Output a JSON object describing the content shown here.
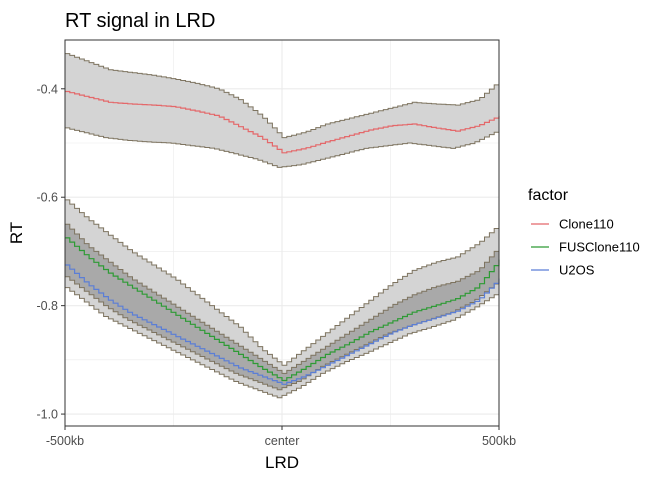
{
  "chart_data": {
    "type": "line",
    "title": "RT signal in LRD",
    "xlabel": "LRD",
    "ylabel": "RT",
    "x_ticks": [
      "-500kb",
      "center",
      "500kb"
    ],
    "x_tick_values": [
      -500,
      0,
      500
    ],
    "xlim": [
      -500,
      500
    ],
    "y_ticks": [
      -1.0,
      -0.8,
      -0.6,
      -0.4
    ],
    "y_tick_labels": [
      "-1.0",
      "-0.8",
      "-0.6",
      "-0.4"
    ],
    "ylim": [
      -1.022,
      -0.31
    ],
    "grid": true,
    "legend": {
      "title": "factor",
      "position": "right"
    },
    "x": [
      -500,
      -450,
      -400,
      -350,
      -300,
      -250,
      -200,
      -150,
      -100,
      -50,
      0,
      50,
      100,
      150,
      200,
      250,
      300,
      350,
      400,
      450,
      500
    ],
    "series": [
      {
        "name": "Clone110",
        "color": "#e4686a",
        "values": [
          -0.405,
          -0.415,
          -0.425,
          -0.428,
          -0.43,
          -0.433,
          -0.441,
          -0.45,
          -0.47,
          -0.49,
          -0.518,
          -0.51,
          -0.498,
          -0.487,
          -0.476,
          -0.468,
          -0.465,
          -0.472,
          -0.478,
          -0.468,
          -0.45
        ],
        "lower": [
          -0.47,
          -0.48,
          -0.49,
          -0.495,
          -0.498,
          -0.5,
          -0.505,
          -0.51,
          -0.52,
          -0.53,
          -0.545,
          -0.54,
          -0.53,
          -0.52,
          -0.51,
          -0.505,
          -0.5,
          -0.505,
          -0.51,
          -0.5,
          -0.48
        ],
        "upper": [
          -0.335,
          -0.35,
          -0.365,
          -0.37,
          -0.375,
          -0.382,
          -0.39,
          -0.4,
          -0.42,
          -0.45,
          -0.49,
          -0.48,
          -0.465,
          -0.455,
          -0.445,
          -0.435,
          -0.425,
          -0.428,
          -0.43,
          -0.42,
          -0.385
        ]
      },
      {
        "name": "FUSClone110",
        "color": "#2e9b35",
        "values": [
          -0.675,
          -0.71,
          -0.74,
          -0.765,
          -0.79,
          -0.815,
          -0.84,
          -0.865,
          -0.89,
          -0.915,
          -0.938,
          -0.915,
          -0.89,
          -0.87,
          -0.848,
          -0.83,
          -0.812,
          -0.8,
          -0.787,
          -0.765,
          -0.715
        ],
        "lower": [
          -0.76,
          -0.79,
          -0.82,
          -0.84,
          -0.86,
          -0.88,
          -0.9,
          -0.92,
          -0.94,
          -0.955,
          -0.97,
          -0.95,
          -0.925,
          -0.905,
          -0.888,
          -0.87,
          -0.852,
          -0.84,
          -0.827,
          -0.805,
          -0.78
        ],
        "upper": [
          -0.605,
          -0.64,
          -0.67,
          -0.7,
          -0.725,
          -0.75,
          -0.78,
          -0.81,
          -0.84,
          -0.88,
          -0.91,
          -0.88,
          -0.85,
          -0.82,
          -0.79,
          -0.76,
          -0.735,
          -0.72,
          -0.71,
          -0.685,
          -0.65
        ]
      },
      {
        "name": "U2OS",
        "color": "#5b7ed6",
        "values": [
          -0.725,
          -0.76,
          -0.79,
          -0.815,
          -0.835,
          -0.855,
          -0.875,
          -0.895,
          -0.915,
          -0.93,
          -0.945,
          -0.93,
          -0.91,
          -0.89,
          -0.87,
          -0.85,
          -0.835,
          -0.823,
          -0.81,
          -0.79,
          -0.75
        ],
        "lower": [
          -0.76,
          -0.79,
          -0.82,
          -0.84,
          -0.86,
          -0.88,
          -0.9,
          -0.92,
          -0.94,
          -0.955,
          -0.97,
          -0.95,
          -0.925,
          -0.905,
          -0.888,
          -0.87,
          -0.852,
          -0.84,
          -0.827,
          -0.805,
          -0.78
        ],
        "upper": [
          -0.605,
          -0.64,
          -0.67,
          -0.7,
          -0.725,
          -0.75,
          -0.78,
          -0.81,
          -0.84,
          -0.88,
          -0.91,
          -0.88,
          -0.85,
          -0.82,
          -0.79,
          -0.76,
          -0.735,
          -0.72,
          -0.71,
          -0.685,
          -0.65
        ]
      }
    ],
    "inner_band": {
      "lower": [
        -0.74,
        -0.77,
        -0.8,
        -0.825,
        -0.845,
        -0.865,
        -0.885,
        -0.905,
        -0.925,
        -0.94,
        -0.955,
        -0.938,
        -0.912,
        -0.892,
        -0.872,
        -0.852,
        -0.838,
        -0.825,
        -0.812,
        -0.792,
        -0.76
      ],
      "upper": [
        -0.65,
        -0.69,
        -0.72,
        -0.75,
        -0.775,
        -0.8,
        -0.825,
        -0.85,
        -0.875,
        -0.9,
        -0.925,
        -0.9,
        -0.875,
        -0.85,
        -0.825,
        -0.8,
        -0.78,
        -0.765,
        -0.755,
        -0.735,
        -0.69
      ]
    },
    "band_fill": "#d4d4d4",
    "inner_band_fill": "#a9a9a9",
    "band_stroke": "#7d735f",
    "panel_border": "#333333",
    "grid_color": "#ebebeb"
  }
}
